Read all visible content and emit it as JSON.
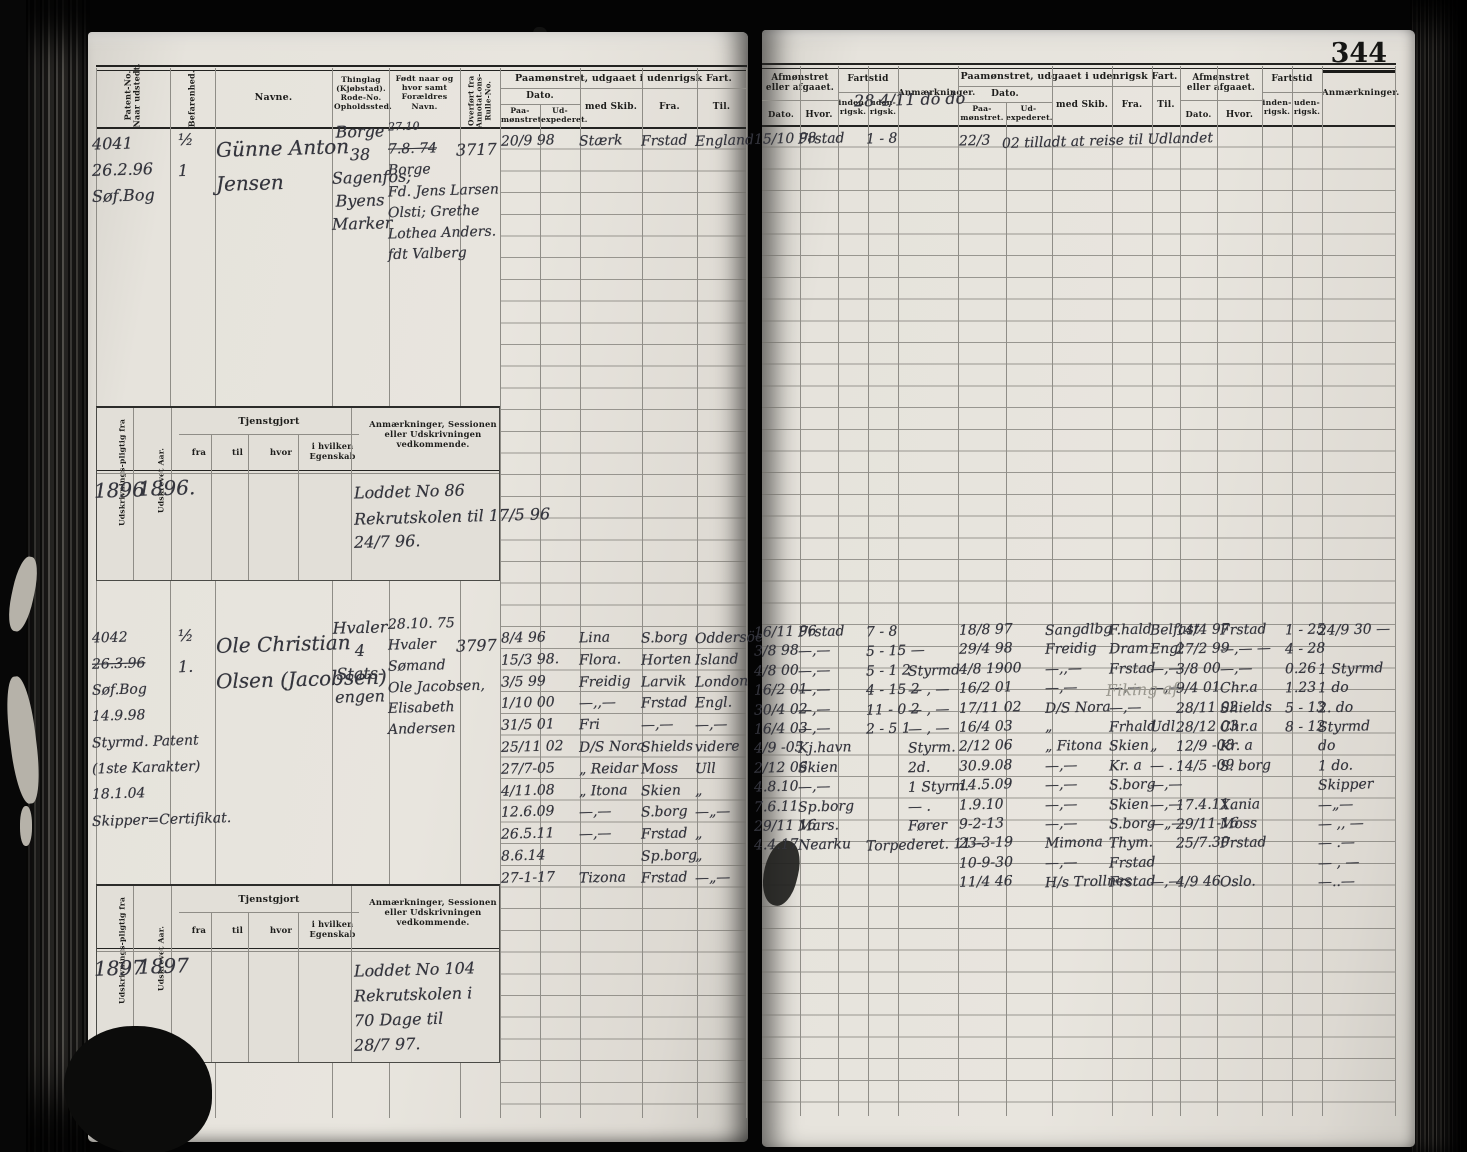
{
  "page_number": "344",
  "colors": {
    "paper": "#e2dfd8",
    "ink": "#34353d",
    "rule": "#a19f99",
    "print": "#1d1d1b"
  },
  "headers": {
    "col_patent": "Patent-No. Naar udstedt.",
    "col_befarenhed": "Befarenhed.",
    "col_navne": "Navne.",
    "col_thinglag": "Thinglag (Kjøbstad). Rode-No. Opholdssted.",
    "col_fodt": "Født naar og hvor samt Forældres Navn.",
    "col_overfort": "Overført fra Annotat.ons-Rulle-No.",
    "group_paamonstret": "Paamønstret, udgaaet i udenrigsk Fart.",
    "dato": "Dato.",
    "paa_monstret": "Paa-mønstret.",
    "ud_expederet": "Ud-expederet.",
    "med_skib": "med Skib.",
    "fra": "Fra.",
    "til": "Til.",
    "group_afmonstret": "Afmønstret eller afgaaet.",
    "hvor": "Hvor.",
    "fartstid": "Fartstid",
    "indenrigs": "inden-rigsk.",
    "udenrigs": "uden-rigsk.",
    "anmaerkninger": "Anmærkninger."
  },
  "service_table": {
    "col_pligtig": "Udskrivnings-pligtig fra",
    "col_udskrevet": "Udskrevet Aar.",
    "tjenstgjort": "Tjenstgjort",
    "fra": "fra",
    "til": "til",
    "hvor": "hvor",
    "egenskab": "i hvilken Egenskab",
    "anm": "Anmærkninger, Sessionen eller Udskrivningen vedkommende."
  },
  "records": [
    {
      "patent_lines": [
        "4041",
        "26.2.96",
        "Søf.Bog"
      ],
      "befarenhed_lines": [
        "½",
        "1"
      ],
      "name_lines": [
        "Günne Anton",
        "Jensen"
      ],
      "residence_lines": [
        "Borge",
        "38",
        "Sagenfos;",
        "Byens",
        "Marker"
      ],
      "born_lines": [
        {
          "t": "27.10",
          "small": true
        },
        {
          "t": "7.8. 74",
          "strike": true
        },
        "Borge",
        "Fd. Jens Larsen",
        "Olsti; Grethe",
        "Lothea Anders.",
        "fdt Valberg"
      ],
      "transfer_no": "3717",
      "header_scribble": "28 4/11 do do",
      "voyages_left": [
        {
          "d": "20/9 98",
          "skib": "Stærk",
          "fra": "Frstad",
          "til": "England"
        }
      ],
      "discharge_left": [
        {
          "d": "15/10 98",
          "hvor": "Frstad",
          "fart": "1 - 8",
          "anm": ""
        }
      ],
      "voyages_right": [
        {
          "d": "22/3",
          "note": "02  tilladt at reise til Udlandet"
        }
      ],
      "discharge_right": [],
      "service": {
        "pligtig": "1896",
        "aar": "1896.",
        "anm_lines": [
          "Loddet No 86",
          "Rekrutskolen til 17/5 96",
          "24/7 96."
        ]
      }
    },
    {
      "patent_lines": [
        "4042",
        {
          "t": "26.3.96",
          "strike": true
        },
        "Søf.Bog",
        "14.9.98",
        "Styrmd. Patent",
        "(1ste Karakter)",
        "18.1.04",
        "Skipper=Certifikat."
      ],
      "befarenhed_lines": [
        "½",
        "1."
      ],
      "name_lines": [
        "Ole Christian",
        "Olsen (Jacobsen)"
      ],
      "residence_lines": [
        "Hvaler",
        "4",
        "Stats-",
        "engen"
      ],
      "born_lines": [
        "28.10. 75",
        "Hvaler",
        "Sømand",
        "Ole Jacobsen,",
        "Elisabeth",
        "Andersen"
      ],
      "transfer_no": "3797",
      "header_scribble": "",
      "ghost_note": "Fiking af",
      "voyages_left": [
        {
          "d": "8/4 96",
          "skib": "Lina",
          "fra": "S.borg",
          "til": "Oddersöen"
        },
        {
          "d": "15/3 98.",
          "skib": "Flora.",
          "fra": "Horten",
          "til": "Island"
        },
        {
          "d": "3/5 99",
          "skib": "Freidig",
          "fra": "Larvik",
          "til": "London"
        },
        {
          "d": "1/10 00",
          "skib": "—,,—",
          "fra": "Frstad",
          "til": "Engl."
        },
        {
          "d": "31/5 01",
          "skib": "Fri",
          "fra": "—,—",
          "til": "—,—"
        },
        {
          "d": "25/11 02",
          "skib": "D/S Nora",
          "fra": "Shields",
          "til": "videre"
        },
        {
          "d": "27/7-05",
          "skib": "„ Reidar",
          "fra": "Moss",
          "til": "Ull"
        },
        {
          "d": "4/11.08",
          "skib": "„ Itona",
          "fra": "Skien",
          "til": "„"
        },
        {
          "d": "12.6.09",
          "skib": "—,—",
          "fra": "S.borg",
          "til": "—„—"
        },
        {
          "d": "26.5.11",
          "skib": "—,—",
          "fra": "Frstad",
          "til": "„"
        },
        {
          "d": "8.6.14",
          "skib": "",
          "fra": "Sp.borg",
          "til": "„"
        },
        {
          "d": "27-1-17",
          "skib": "Tizona",
          "fra": "Frstad",
          "til": "—„—"
        }
      ],
      "discharge_left": [
        {
          "d": "16/11 96",
          "hvor": "Frstad",
          "fart": "7 - 8",
          "anm": ""
        },
        {
          "d": "3/8 98",
          "hvor": "—,—",
          "fart": "5 - 15 —",
          "anm": ""
        },
        {
          "d": "4/8 00",
          "hvor": "—,—",
          "fart": "5 - 1 2",
          "anm": "Styrmd"
        },
        {
          "d": "16/2 01",
          "hvor": "—,—",
          "fart": "4 - 15 2",
          "anm": "— , —"
        },
        {
          "d": "30/4 02",
          "hvor": "—,—",
          "fart": "11 - 0 2",
          "anm": "— , —"
        },
        {
          "d": "16/4 03",
          "hvor": "—,—",
          "fart": "2 - 5 1",
          "anm": "— , —"
        },
        {
          "d": "4/9 -05",
          "hvor": "Kj.havn",
          "fart": "",
          "anm": "Styrm."
        },
        {
          "d": "2/12 06",
          "hvor": "Skien",
          "fart": "",
          "anm": "2d."
        },
        {
          "d": "4.8.10",
          "hvor": "—,—",
          "fart": "",
          "anm": "1 Styrm."
        },
        {
          "d": "7.6.11",
          "hvor": "Sp.borg",
          "fart": "",
          "anm": "— ."
        },
        {
          "d": "29/11 16",
          "hvor": "Mars.",
          "fart": "",
          "anm": "Fører"
        },
        {
          "d": "4.4.17",
          "hvor": "Nearku",
          "fart": "Torpederet.  11—",
          "anm": ""
        }
      ],
      "voyages_right": [
        {
          "d": "18/8 97",
          "skib": "Sangdlbg",
          "fra": "F.hald",
          "til": "Belfast"
        },
        {
          "d": "29/4 98",
          "skib": "Freidig",
          "fra": "Dram",
          "til": "Engl"
        },
        {
          "d": "4/8 1900",
          "skib": "—,,—",
          "fra": "Frstad",
          "til": "—,—"
        },
        {
          "d": "16/2 01",
          "skib": "—,—",
          "fra": "—,—",
          "til": "—,—"
        },
        {
          "d": "17/11 02",
          "skib": "D/S Nora",
          "fra": "—,—",
          "til": ""
        },
        {
          "d": "16/4 03",
          "skib": "„",
          "fra": "Frhald",
          "til": "Udl"
        },
        {
          "d": "2/12 06",
          "skib": "„ Fitona",
          "fra": "Skien",
          "til": "„"
        },
        {
          "d": "30.9.08",
          "skib": "—,—",
          "fra": "Kr. a",
          "til": "— ."
        },
        {
          "d": "14.5.09",
          "skib": "—,—",
          "fra": "S.borg",
          "til": "—,—"
        },
        {
          "d": "1.9.10",
          "skib": "—,—",
          "fra": "Skien",
          "til": "—,—"
        },
        {
          "d": "9-2-13",
          "skib": "—,—",
          "fra": "S.borg",
          "til": "—„—"
        },
        {
          "d": "23-3-19",
          "skib": "Mimona",
          "fra": "Thym.",
          "til": ""
        },
        {
          "d": "10-9-30",
          "skib": "—,—",
          "fra": "Frstad",
          "til": ""
        },
        {
          "d": "11/4 46",
          "skib": "H/s Trollnes",
          "fra": "Frstad",
          "til": "—,—"
        }
      ],
      "discharge_right": [
        {
          "d": "14/4 97",
          "hvor": "Frstad",
          "fart": "1 - 25",
          "anm": "24/9 30 —"
        },
        {
          "d": "27/2 99",
          "hvor": "—,— —",
          "fart": "4 - 28",
          "anm": ""
        },
        {
          "d": "3/8 00",
          "hvor": "—,—",
          "fart": "0.26",
          "anm": "1 Styrmd"
        },
        {
          "d": "9/4 01",
          "hvor": "Chr.a",
          "fart": "1.23",
          "anm": "1 do"
        },
        {
          "d": "28/11 02",
          "hvor": "Shields",
          "fart": "5 - 13",
          "anm": "2. do"
        },
        {
          "d": "28/12 03",
          "hvor": "Chr.a",
          "fart": "8 - 12",
          "anm": "Styrmd"
        },
        {
          "d": "12/9 -08",
          "hvor": "Kr. a",
          "fart": "",
          "anm": "do"
        },
        {
          "d": "14/5 -09",
          "hvor": "S. borg",
          "fart": "",
          "anm": "1 do."
        },
        {
          "d": "",
          "hvor": "",
          "fart": "",
          "anm": "Skipper"
        },
        {
          "d": "17.4.11.",
          "hvor": "Xania",
          "fart": "",
          "anm": "—„—"
        },
        {
          "d": "29/11-16",
          "hvor": "Moss",
          "fart": "",
          "anm": "— ,, —"
        },
        {
          "d": "25/7.30",
          "hvor": "Frstad",
          "fart": "",
          "anm": "— .—"
        },
        {
          "d": "",
          "hvor": "",
          "fart": "",
          "anm": "— , —"
        },
        {
          "d": "4/9 46",
          "hvor": "Oslo.",
          "fart": "",
          "anm": "—..—"
        }
      ],
      "service": {
        "pligtig": "1897",
        "aar": "1897",
        "anm_lines": [
          "Loddet No 104",
          "Rekrutskolen i",
          "70 Dage til",
          "28/7 97."
        ]
      }
    }
  ]
}
